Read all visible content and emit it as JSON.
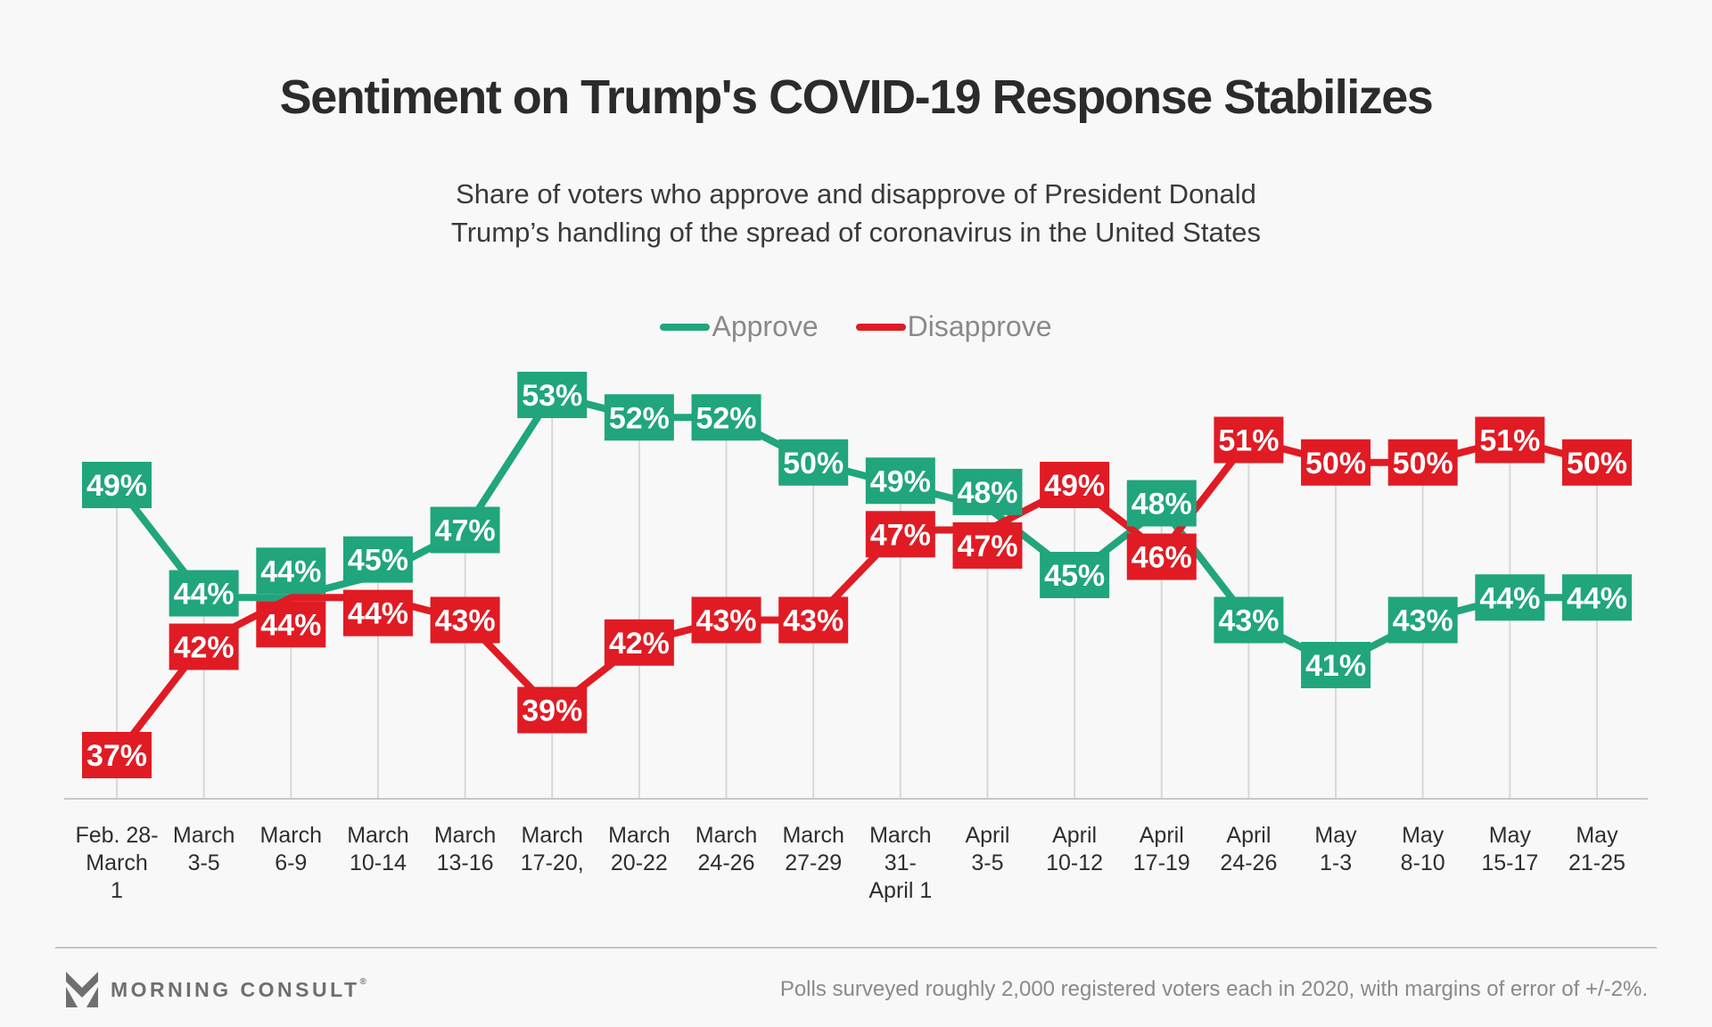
{
  "title": "Sentiment on Trump's COVID-19 Response Stabilizes",
  "subtitle": "Share of voters who approve and disapprove of President Donald\nTrump’s handling of the spread of coronavirus in the United States",
  "legend": {
    "approve_label": "Approve",
    "disapprove_label": "Disapprove"
  },
  "colors": {
    "approve": "#20a57c",
    "disapprove": "#e01b24",
    "grid": "#d8d8d8",
    "axis": "#c8c8c8",
    "label_text": "#ffffff",
    "legend_text": "#8a8a8a",
    "background": "#f8f8f8"
  },
  "chart_data": {
    "type": "line",
    "title": "Sentiment on Trump's COVID-19 Response Stabilizes",
    "subtitle": "Share of voters who approve and disapprove of President Donald Trump’s handling of the spread of coronavirus in the United States",
    "categories": [
      "Feb. 28-\nMarch\n1",
      "March\n3-5",
      "March\n6-9",
      "March\n10-14",
      "March\n13-16",
      "March\n17-20,",
      "March\n20-22",
      "March\n24-26",
      "March\n27-29",
      "March\n31-\nApril 1",
      "April\n3-5",
      "April\n10-12",
      "April\n17-19",
      "April\n24-26",
      "May\n1-3",
      "May\n8-10",
      "May\n15-17",
      "May\n21-25"
    ],
    "series": [
      {
        "name": "Approve",
        "color": "#20a57c",
        "values": [
          49,
          44,
          44,
          45,
          47,
          53,
          52,
          52,
          50,
          49,
          48,
          45,
          48,
          43,
          41,
          43,
          44,
          44
        ]
      },
      {
        "name": "Disapprove",
        "color": "#e01b24",
        "values": [
          37,
          42,
          44,
          44,
          43,
          39,
          42,
          43,
          43,
          47,
          47,
          49,
          46,
          51,
          50,
          50,
          51,
          50
        ]
      }
    ],
    "value_suffix": "%",
    "ylim": [
      35,
      55
    ],
    "grid": "vertical",
    "legend_position": "top",
    "data_labels": true
  },
  "footer": {
    "brand": "MORNING CONSULT",
    "brand_mark": "®",
    "note": "Polls surveyed roughly 2,000 registered voters each in 2020, with margins of error of +/-2%."
  }
}
